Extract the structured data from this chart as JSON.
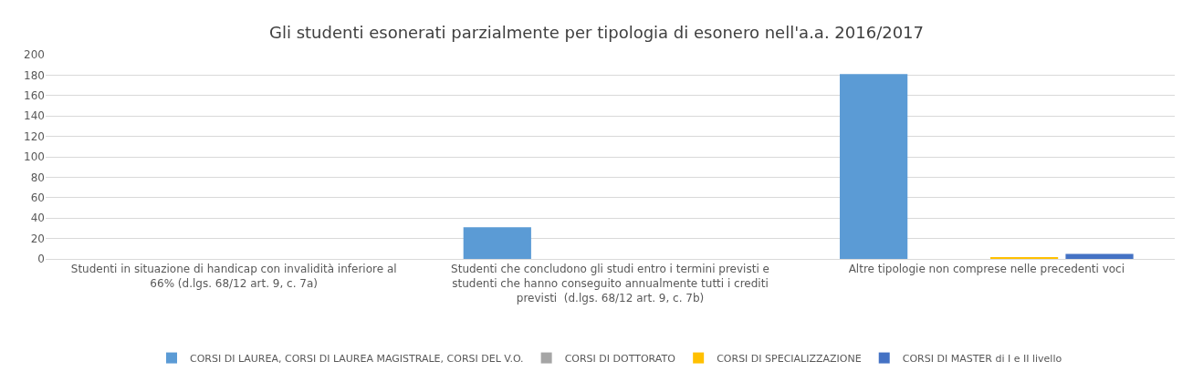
{
  "chart_data": {
    "type": "bar",
    "title": "Gli studenti esonerati parzialmente per tipologia di esonero nell'a.a. 2016/2017",
    "categories": [
      "Studenti in situazione di handicap con invalidità inferiore al 66% (d.lgs. 68/12 art. 9, c. 7a)",
      "Studenti che concludono gli studi entro i termini previsti e studenti che hanno conseguito annualmente tutti i crediti previsti  (d.lgs. 68/12 art. 9, c. 7b)",
      "Altre tipologie non comprese nelle precedenti voci"
    ],
    "series": [
      {
        "name": "CORSI DI LAUREA, CORSI DI LAUREA MAGISTRALE, CORSI DEL V.O.",
        "color": "#5b9bd5",
        "values": [
          null,
          31,
          181
        ]
      },
      {
        "name": "CORSI DI DOTTORATO",
        "color": "#a5a5a5",
        "values": [
          null,
          null,
          null
        ]
      },
      {
        "name": "CORSI DI SPECIALIZZAZIONE",
        "color": "#ffc000",
        "values": [
          null,
          null,
          1
        ]
      },
      {
        "name": "CORSI DI MASTER di I e II livello",
        "color": "#4472c4",
        "values": [
          null,
          null,
          5
        ]
      }
    ],
    "ylim": [
      0,
      200
    ],
    "yticks": [
      0,
      20,
      40,
      60,
      80,
      100,
      120,
      140,
      160,
      180,
      200
    ],
    "grid": "y",
    "legend": "bottom"
  }
}
